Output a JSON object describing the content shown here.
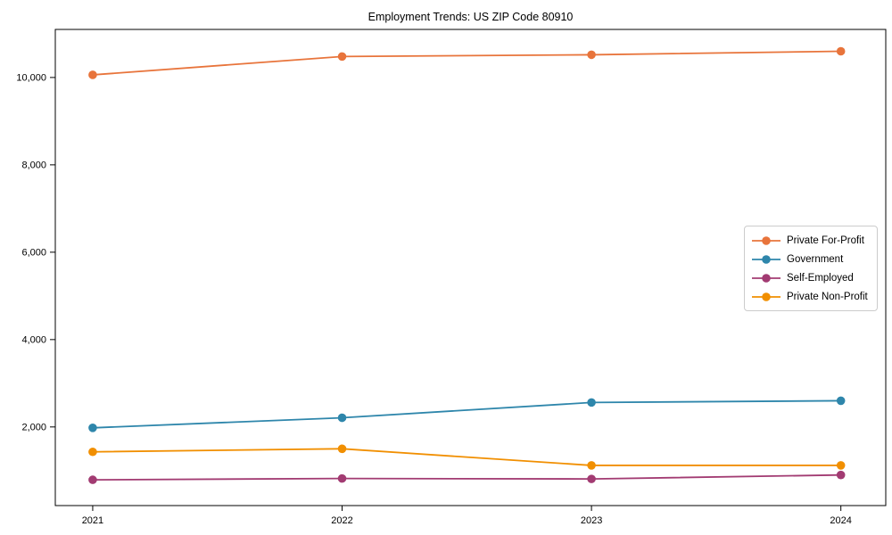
{
  "chart_data": {
    "type": "line",
    "title": "Employment Trends: US ZIP Code 80910",
    "x": [
      2021,
      2022,
      2023,
      2024
    ],
    "x_tick_labels": [
      "2021",
      "2022",
      "2023",
      "2024"
    ],
    "series": [
      {
        "name": "Private For-Profit",
        "color": "#E8743B",
        "values": [
          10060,
          10480,
          10520,
          10600
        ]
      },
      {
        "name": "Government",
        "color": "#2E86AB",
        "values": [
          1980,
          2210,
          2560,
          2600
        ]
      },
      {
        "name": "Self-Employed",
        "color": "#A23B72",
        "values": [
          790,
          820,
          810,
          900
        ]
      },
      {
        "name": "Private Non-Profit",
        "color": "#F18F01",
        "values": [
          1430,
          1500,
          1120,
          1120
        ]
      }
    ],
    "yticks": [
      2000,
      4000,
      6000,
      8000,
      10000
    ],
    "ytick_labels": [
      "2,000",
      "4,000",
      "6,000",
      "8,000",
      "10,000"
    ],
    "xlim": [
      2020.85,
      2024.18
    ],
    "ylim": [
      200,
      11100
    ],
    "xlabel": "",
    "ylabel": "",
    "grid": false,
    "legend_position": "center-right",
    "marker": "circle",
    "frame_color": "#000000"
  }
}
